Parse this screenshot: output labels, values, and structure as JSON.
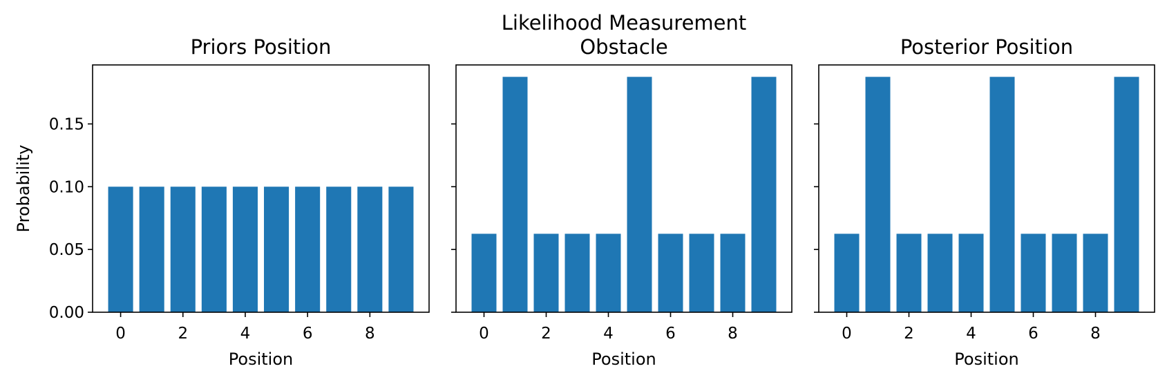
{
  "figure": {
    "background": "#ffffff",
    "bar_color": "#1f77b4",
    "shared_y": true
  },
  "chart_data": [
    {
      "type": "bar",
      "title": "Priors Position",
      "xlabel": "Position",
      "ylabel": "Probability",
      "categories": [
        0,
        1,
        2,
        3,
        4,
        5,
        6,
        7,
        8,
        9
      ],
      "values": [
        0.1,
        0.1,
        0.1,
        0.1,
        0.1,
        0.1,
        0.1,
        0.1,
        0.1,
        0.1
      ],
      "xticks": [
        "0",
        "2",
        "4",
        "6",
        "8"
      ],
      "xlim": [
        -0.9,
        9.9
      ],
      "ylim": [
        0,
        0.197
      ],
      "yticks": [
        "0.00",
        "0.05",
        "0.10",
        "0.15"
      ],
      "show_ytick_labels": true,
      "grid": false
    },
    {
      "type": "bar",
      "title": "Likelihood Measurement\nObstacle",
      "xlabel": "Position",
      "ylabel": "",
      "categories": [
        0,
        1,
        2,
        3,
        4,
        5,
        6,
        7,
        8,
        9
      ],
      "values": [
        0.0625,
        0.1875,
        0.0625,
        0.0625,
        0.0625,
        0.1875,
        0.0625,
        0.0625,
        0.0625,
        0.1875
      ],
      "xticks": [
        "0",
        "2",
        "4",
        "6",
        "8"
      ],
      "xlim": [
        -0.9,
        9.9
      ],
      "ylim": [
        0,
        0.197
      ],
      "yticks": [
        "0.00",
        "0.05",
        "0.10",
        "0.15"
      ],
      "show_ytick_labels": false,
      "grid": false
    },
    {
      "type": "bar",
      "title": "Posterior Position",
      "xlabel": "Position",
      "ylabel": "",
      "categories": [
        0,
        1,
        2,
        3,
        4,
        5,
        6,
        7,
        8,
        9
      ],
      "values": [
        0.0625,
        0.1875,
        0.0625,
        0.0625,
        0.0625,
        0.1875,
        0.0625,
        0.0625,
        0.0625,
        0.1875
      ],
      "xticks": [
        "0",
        "2",
        "4",
        "6",
        "8"
      ],
      "xlim": [
        -0.9,
        9.9
      ],
      "ylim": [
        0,
        0.197
      ],
      "yticks": [
        "0.00",
        "0.05",
        "0.10",
        "0.15"
      ],
      "show_ytick_labels": false,
      "grid": false
    }
  ]
}
